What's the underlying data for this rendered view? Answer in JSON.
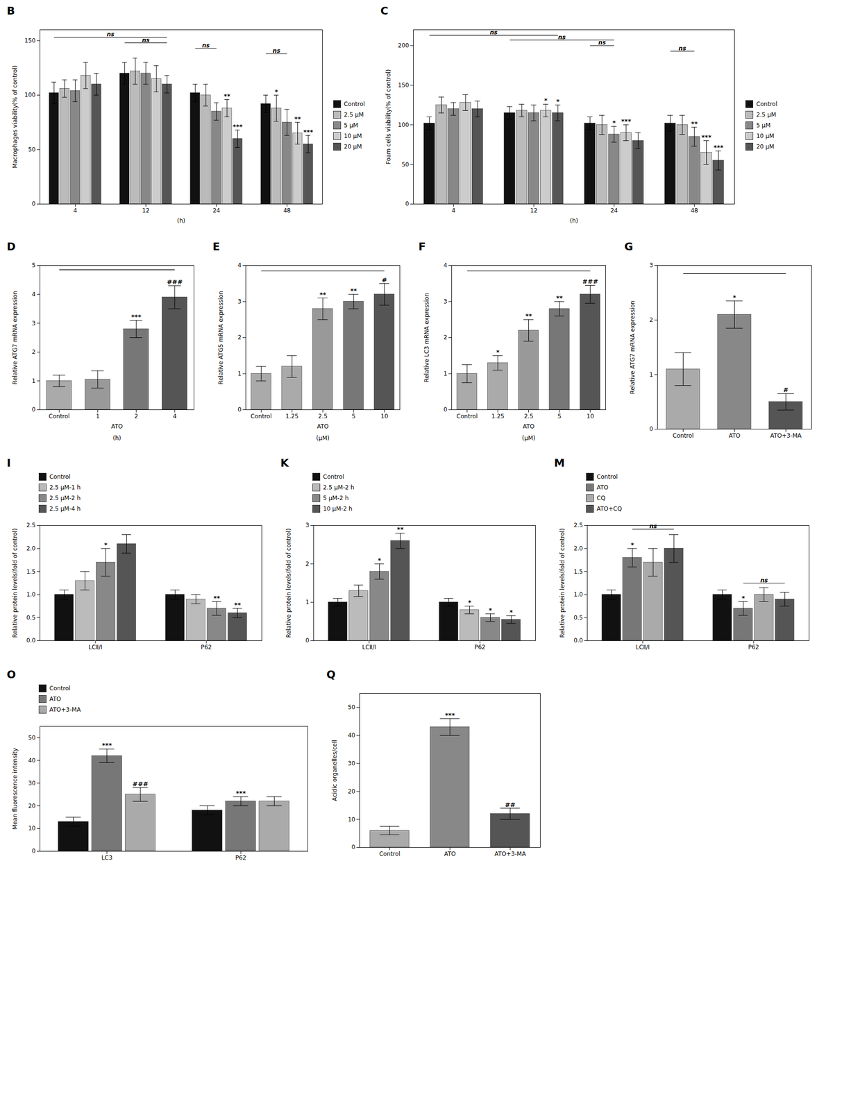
{
  "chart_data": [
    {
      "type": "bar",
      "title": "B",
      "categories": [
        "4",
        "12",
        "24",
        "48"
      ],
      "series": [
        {
          "name": "Control",
          "color": "#111111",
          "values": [
            102,
            120,
            102,
            92
          ],
          "errors": [
            10,
            10,
            8,
            8
          ]
        },
        {
          "name": "2.5 μM",
          "color": "#bbbbbb",
          "values": [
            106,
            122,
            100,
            88
          ],
          "errors": [
            8,
            12,
            10,
            12
          ]
        },
        {
          "name": "5 μM",
          "color": "#888888",
          "values": [
            104,
            120,
            85,
            75
          ],
          "errors": [
            10,
            10,
            8,
            12
          ]
        },
        {
          "name": "10 μM",
          "color": "#cccccc",
          "values": [
            118,
            115,
            88,
            65
          ],
          "errors": [
            12,
            12,
            8,
            10
          ]
        },
        {
          "name": "20 μM",
          "color": "#555555",
          "values": [
            110,
            110,
            60,
            55
          ],
          "errors": [
            10,
            8,
            8,
            8
          ]
        }
      ],
      "ylim": [
        0,
        160
      ],
      "yticks": [
        0,
        50,
        100,
        150
      ],
      "xlabel": "(h)",
      "ylabel": "Macrophages viability(% of control)",
      "legend": "right",
      "annotations": [
        {
          "text": "**",
          "category": "24",
          "series": "10 μM"
        },
        {
          "text": "***",
          "category": "24",
          "series": "20 μM"
        },
        {
          "text": "*",
          "category": "48",
          "series": "2.5 μM"
        },
        {
          "text": "**",
          "category": "48",
          "series": "10 μM"
        },
        {
          "text": "***",
          "category": "48",
          "series": "20 μM"
        },
        {
          "text": "ns",
          "from": {
            "category": "4",
            "series": "Control"
          },
          "to": {
            "category": "12",
            "series": "20 μM"
          },
          "y": 153
        },
        {
          "text": "ns",
          "from": {
            "category": "12",
            "series": "Control"
          },
          "to": {
            "category": "12",
            "series": "20 μM"
          },
          "y": 148
        },
        {
          "text": "ns",
          "from": {
            "category": "24",
            "series": "Control"
          },
          "to": {
            "category": "24",
            "series": "5 μM"
          },
          "y": 143
        },
        {
          "text": "ns",
          "from": {
            "category": "48",
            "series": "Control"
          },
          "to": {
            "category": "48",
            "series": "5 μM"
          },
          "y": 138
        }
      ]
    },
    {
      "type": "bar",
      "title": "C",
      "categories": [
        "4",
        "12",
        "24",
        "48"
      ],
      "series": [
        {
          "name": "Control",
          "color": "#111111",
          "values": [
            102,
            115,
            102,
            102
          ],
          "errors": [
            8,
            8,
            8,
            10
          ]
        },
        {
          "name": "2.5 μM",
          "color": "#bbbbbb",
          "values": [
            125,
            118,
            100,
            100
          ],
          "errors": [
            10,
            8,
            12,
            12
          ]
        },
        {
          "name": "5 μM",
          "color": "#888888",
          "values": [
            120,
            115,
            88,
            85
          ],
          "errors": [
            8,
            10,
            10,
            12
          ]
        },
        {
          "name": "10 μM",
          "color": "#cccccc",
          "values": [
            128,
            118,
            90,
            65
          ],
          "errors": [
            10,
            8,
            10,
            15
          ]
        },
        {
          "name": "20 μM",
          "color": "#555555",
          "values": [
            120,
            115,
            80,
            55
          ],
          "errors": [
            10,
            10,
            10,
            12
          ]
        }
      ],
      "ylim": [
        0,
        220
      ],
      "yticks": [
        0,
        50,
        100,
        150,
        200
      ],
      "xlabel": "(h)",
      "ylabel": "Foam cells viability(% of control)",
      "legend": "right",
      "annotations": [
        {
          "text": "*",
          "category": "12",
          "series": "10 μM"
        },
        {
          "text": "*",
          "category": "12",
          "series": "20 μM"
        },
        {
          "text": "*",
          "category": "24",
          "series": "5 μM"
        },
        {
          "text": "***",
          "category": "24",
          "series": "10 μM"
        },
        {
          "text": "**",
          "category": "48",
          "series": "5 μM"
        },
        {
          "text": "***",
          "category": "48",
          "series": "10 μM"
        },
        {
          "text": "***",
          "category": "48",
          "series": "20 μM"
        },
        {
          "text": "ns",
          "from": {
            "category": "4",
            "series": "Control"
          },
          "to": {
            "category": "12",
            "series": "20 μM"
          },
          "y": 213
        },
        {
          "text": "ns",
          "from": {
            "category": "12",
            "series": "Control"
          },
          "to": {
            "category": "24",
            "series": "5 μM"
          },
          "y": 207
        },
        {
          "text": "ns",
          "from": {
            "category": "24",
            "series": "Control"
          },
          "to": {
            "category": "24",
            "series": "5 μM"
          },
          "y": 200
        },
        {
          "text": "ns",
          "from": {
            "category": "48",
            "series": "Control"
          },
          "to": {
            "category": "48",
            "series": "5 μM"
          },
          "y": 193
        }
      ]
    },
    {
      "type": "bar",
      "title": "D",
      "categories": [
        "Control",
        "1",
        "2",
        "4"
      ],
      "values": [
        1.0,
        1.05,
        2.8,
        3.9
      ],
      "errors": [
        0.2,
        0.3,
        0.3,
        0.4
      ],
      "colors": [
        "#aaaaaa",
        "#999999",
        "#777777",
        "#555555"
      ],
      "ylim": [
        0,
        5
      ],
      "yticks": [
        0,
        1,
        2,
        3,
        4,
        5
      ],
      "xlabel": "ATO",
      "ylabel": "Relative ATG7 mRNA expression",
      "annotations": [
        {
          "text": "(h)"
        },
        {
          "text": "***",
          "category": "2"
        },
        {
          "text": "###",
          "category": "4"
        },
        {
          "from": {
            "category": "Control"
          },
          "to": {
            "category": "4"
          },
          "y": 4.85
        }
      ]
    },
    {
      "type": "bar",
      "title": "E",
      "categories": [
        "Control",
        "1.25",
        "2.5",
        "5",
        "10"
      ],
      "values": [
        1.0,
        1.2,
        2.8,
        3.0,
        3.2
      ],
      "errors": [
        0.2,
        0.3,
        0.3,
        0.2,
        0.3
      ],
      "colors": [
        "#aaaaaa",
        "#aaaaaa",
        "#999999",
        "#777777",
        "#555555"
      ],
      "ylim": [
        0,
        4
      ],
      "yticks": [
        0,
        1,
        2,
        3,
        4
      ],
      "xlabel": "ATO",
      "ylabel": "Relative ATG5 mRNA expression",
      "annotations": [
        {
          "text": "(μM)"
        },
        {
          "text": "**",
          "category": "2.5"
        },
        {
          "text": "**",
          "category": "5"
        },
        {
          "text": "#",
          "category": "10"
        },
        {
          "from": {
            "category": "Control"
          },
          "to": {
            "category": "10"
          },
          "y": 3.85
        }
      ]
    },
    {
      "type": "bar",
      "title": "F",
      "categories": [
        "Control",
        "1.25",
        "2.5",
        "5",
        "10"
      ],
      "values": [
        1.0,
        1.3,
        2.2,
        2.8,
        3.2
      ],
      "errors": [
        0.25,
        0.2,
        0.3,
        0.2,
        0.25
      ],
      "colors": [
        "#aaaaaa",
        "#aaaaaa",
        "#999999",
        "#777777",
        "#555555"
      ],
      "ylim": [
        0,
        4
      ],
      "yticks": [
        0,
        1,
        2,
        3,
        4
      ],
      "xlabel": "ATO",
      "ylabel": "Relative LC3 mRNA expression",
      "annotations": [
        {
          "text": "(μM)"
        },
        {
          "text": "*",
          "category": "1.25"
        },
        {
          "text": "**",
          "category": "2.5"
        },
        {
          "text": "**",
          "category": "5"
        },
        {
          "text": "###",
          "category": "10"
        },
        {
          "from": {
            "category": "Control"
          },
          "to": {
            "category": "10"
          },
          "y": 3.85
        }
      ]
    },
    {
      "type": "bar",
      "title": "G",
      "categories": [
        "Control",
        "ATO",
        "ATO+3-MA"
      ],
      "values": [
        1.1,
        2.1,
        0.5
      ],
      "errors": [
        0.3,
        0.25,
        0.15
      ],
      "colors": [
        "#aaaaaa",
        "#888888",
        "#555555"
      ],
      "ylim": [
        0,
        3
      ],
      "yticks": [
        0,
        1,
        2,
        3
      ],
      "ylabel": "Relative ATG7 mRNA expression",
      "annotations": [
        {
          "text": "*",
          "category": "ATO"
        },
        {
          "text": "#",
          "category": "ATO+3-MA"
        },
        {
          "from": {
            "category": "Control"
          },
          "to": {
            "category": "ATO+3-MA"
          },
          "y": 2.85
        }
      ]
    },
    {
      "type": "bar",
      "title": "I",
      "categories": [
        "LCⅡ/Ⅰ",
        "P62"
      ],
      "series": [
        {
          "name": "Control",
          "color": "#111111",
          "values": [
            1.0,
            1.0
          ],
          "errors": [
            0.1,
            0.1
          ]
        },
        {
          "name": "2.5 μM-1 h",
          "color": "#bbbbbb",
          "values": [
            1.3,
            0.9
          ],
          "errors": [
            0.2,
            0.1
          ]
        },
        {
          "name": "2.5 μM-2 h",
          "color": "#888888",
          "values": [
            1.7,
            0.7
          ],
          "errors": [
            0.3,
            0.15
          ]
        },
        {
          "name": "2.5 μM-4 h",
          "color": "#555555",
          "values": [
            2.1,
            0.6
          ],
          "errors": [
            0.2,
            0.1
          ]
        }
      ],
      "ylim": [
        0,
        2.5
      ],
      "yticks": [
        {
          "value": 0,
          "label": "0.0"
        },
        0.5,
        {
          "value": 1,
          "label": "1.0"
        },
        1.5,
        {
          "value": 2,
          "label": "2.0"
        },
        2.5
      ],
      "ylabel": "Relative protein levels(fold of control)",
      "legend": "top-left",
      "annotations": [
        {
          "text": "*",
          "category": "LCⅡ/Ⅰ",
          "series": "2.5 μM-2 h"
        },
        {
          "text": "**",
          "category": "P62",
          "series": "2.5 μM-2 h"
        },
        {
          "text": "**",
          "category": "P62",
          "series": "2.5 μM-4 h"
        }
      ]
    },
    {
      "type": "bar",
      "title": "K",
      "categories": [
        "LCⅡ/Ⅰ",
        "P62"
      ],
      "series": [
        {
          "name": "Control",
          "color": "#111111",
          "values": [
            1.0,
            1.0
          ],
          "errors": [
            0.1,
            0.1
          ]
        },
        {
          "name": "2.5 μM-2 h",
          "color": "#bbbbbb",
          "values": [
            1.3,
            0.8
          ],
          "errors": [
            0.15,
            0.1
          ]
        },
        {
          "name": "5 μM-2 h",
          "color": "#888888",
          "values": [
            1.8,
            0.6
          ],
          "errors": [
            0.2,
            0.1
          ]
        },
        {
          "name": "10 μM-2 h",
          "color": "#555555",
          "values": [
            2.6,
            0.55
          ],
          "errors": [
            0.2,
            0.1
          ]
        }
      ],
      "ylim": [
        0,
        3
      ],
      "yticks": [
        0,
        1,
        2,
        3
      ],
      "ylabel": "Relative protein levels(fold of control)",
      "legend": "top-left",
      "annotations": [
        {
          "text": "*",
          "category": "LCⅡ/Ⅰ",
          "series": "5 μM-2 h"
        },
        {
          "text": "**",
          "category": "LCⅡ/Ⅰ",
          "series": "10 μM-2 h"
        },
        {
          "text": "*",
          "category": "P62",
          "series": "2.5 μM-2 h"
        },
        {
          "text": "*",
          "category": "P62",
          "series": "5 μM-2 h"
        },
        {
          "text": "*",
          "category": "P62",
          "series": "10 μM-2 h"
        }
      ]
    },
    {
      "type": "bar",
      "title": "M",
      "categories": [
        "LCⅡ/Ⅰ",
        "P62"
      ],
      "series": [
        {
          "name": "Control",
          "color": "#111111",
          "values": [
            1.0,
            1.0
          ],
          "errors": [
            0.1,
            0.1
          ]
        },
        {
          "name": "ATO",
          "color": "#777777",
          "values": [
            1.8,
            0.7
          ],
          "errors": [
            0.2,
            0.15
          ]
        },
        {
          "name": "CQ",
          "color": "#aaaaaa",
          "values": [
            1.7,
            1.0
          ],
          "errors": [
            0.3,
            0.15
          ]
        },
        {
          "name": "ATO+CQ",
          "color": "#555555",
          "values": [
            2.0,
            0.9
          ],
          "errors": [
            0.3,
            0.15
          ]
        }
      ],
      "ylim": [
        0,
        2.5
      ],
      "yticks": [
        {
          "value": 0,
          "label": "0.0"
        },
        0.5,
        {
          "value": 1,
          "label": "1.0"
        },
        1.5,
        {
          "value": 2,
          "label": "2.0"
        },
        2.5
      ],
      "ylabel": "Relative protein levels(fold of control)",
      "legend": "top-left",
      "annotations": [
        {
          "text": "ns",
          "from": {
            "category": "LCⅡ/Ⅰ",
            "series": "ATO"
          },
          "to": {
            "category": "LCⅡ/Ⅰ",
            "series": "ATO+CQ"
          },
          "y": 2.42
        },
        {
          "text": "ns",
          "from": {
            "category": "P62",
            "series": "ATO"
          },
          "to": {
            "category": "P62",
            "series": "ATO+CQ"
          },
          "y": 1.25
        },
        {
          "text": "*",
          "category": "LCⅡ/Ⅰ",
          "series": "ATO"
        },
        {
          "text": "*",
          "category": "P62",
          "series": "ATO"
        }
      ]
    },
    {
      "type": "bar",
      "title": "O",
      "categories": [
        "LC3",
        "P62"
      ],
      "series": [
        {
          "name": "Control",
          "color": "#111111",
          "values": [
            13,
            18
          ],
          "errors": [
            2,
            2
          ]
        },
        {
          "name": "ATO",
          "color": "#777777",
          "values": [
            42,
            22
          ],
          "errors": [
            3,
            2
          ]
        },
        {
          "name": "ATO+3-MA",
          "color": "#aaaaaa",
          "values": [
            25,
            22
          ],
          "errors": [
            3,
            2
          ]
        }
      ],
      "ylim": [
        0,
        55
      ],
      "yticks": [
        0,
        10,
        20,
        30,
        40,
        50
      ],
      "ylabel": "Mean fluorescence intensity",
      "legend": "top-left",
      "annotations": [
        {
          "text": "***",
          "category": "LC3",
          "series": "ATO"
        },
        {
          "text": "###",
          "category": "LC3",
          "series": "ATO+3-MA"
        },
        {
          "text": "***",
          "category": "P62",
          "series": "ATO"
        }
      ]
    },
    {
      "type": "bar",
      "title": "Q",
      "categories": [
        "Control",
        "ATO",
        "ATO+3-MA"
      ],
      "values": [
        6,
        43,
        12
      ],
      "errors": [
        1.5,
        3,
        2
      ],
      "colors": [
        "#aaaaaa",
        "#888888",
        "#555555"
      ],
      "ylim": [
        0,
        55
      ],
      "yticks": [
        0,
        10,
        20,
        30,
        40,
        50
      ],
      "ylabel": "Acidic organelles/cell",
      "annotations": [
        {
          "text": "***",
          "category": "ATO"
        },
        {
          "text": "##",
          "category": "ATO+3-MA"
        }
      ]
    }
  ]
}
